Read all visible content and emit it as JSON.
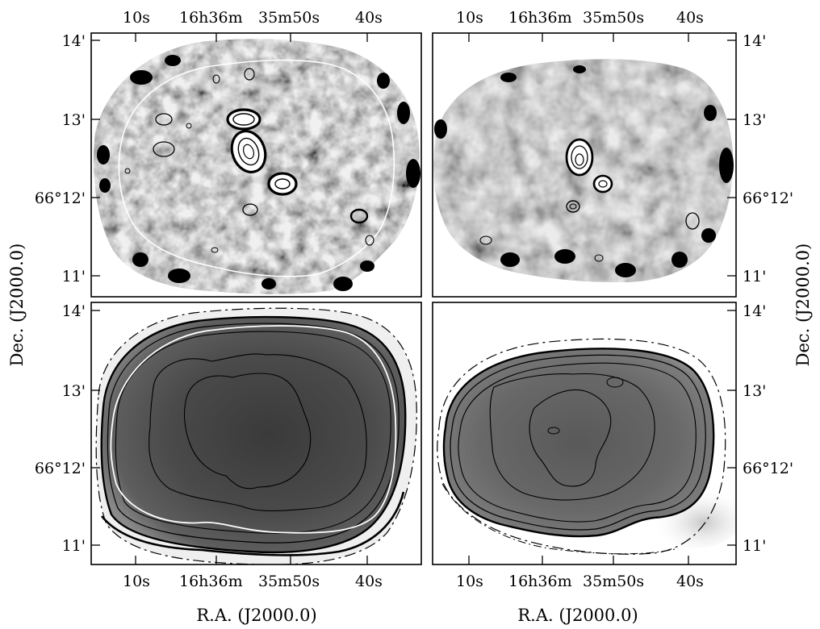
{
  "figure": {
    "ra_ticks": [
      "10s",
      "16h36m",
      "35m50s",
      "40s"
    ],
    "dec_ticks": [
      "14'",
      "13'",
      "66°12'",
      "11'"
    ],
    "xlabel": "R.A. (J2000.0)",
    "ylabel": "Dec. (J2000.0)",
    "panels": [
      {
        "id": "top-left",
        "map": "residual map with contours"
      },
      {
        "id": "top-right",
        "map": "residual map with contours"
      },
      {
        "id": "bottom-left",
        "map": "intensity map with contours"
      },
      {
        "id": "bottom-right",
        "map": "intensity map with contours"
      }
    ]
  }
}
